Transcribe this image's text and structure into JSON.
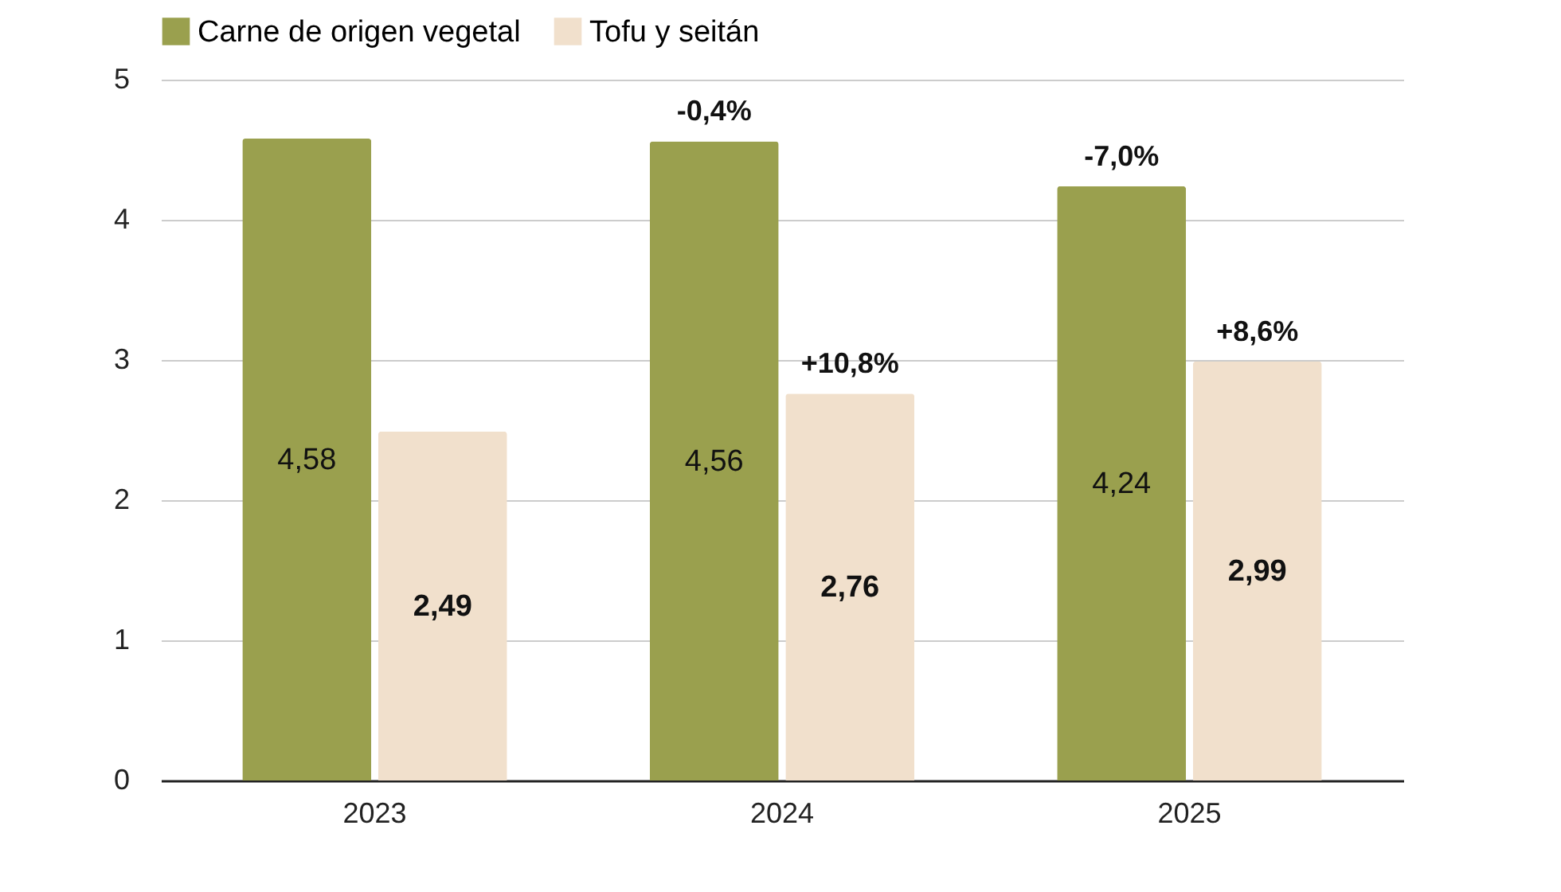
{
  "chart_data": {
    "type": "bar",
    "categories": [
      "2023",
      "2024",
      "2025"
    ],
    "series": [
      {
        "name": "Carne de origen vegetal",
        "color": "#9aa04e",
        "values": [
          4.58,
          4.56,
          4.24
        ],
        "value_labels": [
          "4,58",
          "4,56",
          "4,24"
        ]
      },
      {
        "name": "Tofu y seitán",
        "color": "#f1e0cc",
        "values": [
          2.49,
          2.76,
          2.99
        ],
        "value_labels": [
          "2,49",
          "2,76",
          "2,99"
        ]
      }
    ],
    "ylim": [
      0,
      5
    ],
    "yticks": [
      0,
      1,
      2,
      3,
      4,
      5
    ],
    "grid": "y",
    "legend": "top",
    "annotations": [
      {
        "text": "-0,4%",
        "x": "2024",
        "y": 4.56
      },
      {
        "text": "-7,0%",
        "x": "2025",
        "y": 4.24
      },
      {
        "text": "+10,8%",
        "x": "2024",
        "y": 2.76
      },
      {
        "text": "+8,6%",
        "x": "2025",
        "y": 2.99
      }
    ]
  }
}
